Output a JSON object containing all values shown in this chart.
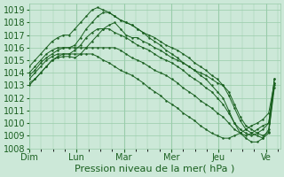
{
  "bg_color": "#cce8d8",
  "grid_color": "#99ccaa",
  "line_color": "#1a6020",
  "marker_color": "#1a6020",
  "ylim": [
    1008,
    1019.5
  ],
  "yticks": [
    1008,
    1009,
    1010,
    1011,
    1012,
    1013,
    1014,
    1015,
    1016,
    1017,
    1018,
    1019
  ],
  "xlabel": "Pression niveau de la mer( hPa )",
  "day_labels": [
    "Dim",
    "Lun",
    "Mar",
    "Mer",
    "Jeu",
    "Ve"
  ],
  "xlabel_fontsize": 8,
  "tick_fontsize": 7,
  "n_days": 5.3,
  "pts_per_day": 8,
  "series": [
    [
      1013.2,
      1013.5,
      1014.0,
      1014.5,
      1015.0,
      1015.2,
      1015.3,
      1015.3,
      1015.2,
      1015.5,
      1016.0,
      1016.5,
      1017.0,
      1017.5,
      1017.8,
      1018.0,
      1017.5,
      1017.0,
      1016.8,
      1016.8,
      1016.5,
      1016.3,
      1016.0,
      1015.8,
      1015.5,
      1015.2,
      1015.0,
      1014.8,
      1014.5,
      1014.2,
      1014.0,
      1013.8,
      1013.5,
      1013.2,
      1013.0,
      1012.5,
      1011.5,
      1010.5,
      1009.8,
      1009.5,
      1009.2,
      1009.0,
      1009.3,
      1013.2
    ],
    [
      1013.8,
      1014.2,
      1014.8,
      1015.2,
      1015.5,
      1015.8,
      1016.0,
      1016.0,
      1016.2,
      1016.8,
      1017.5,
      1018.0,
      1018.5,
      1018.8,
      1018.8,
      1018.5,
      1018.2,
      1018.0,
      1017.8,
      1017.5,
      1017.2,
      1017.0,
      1016.8,
      1016.5,
      1016.2,
      1016.0,
      1015.8,
      1015.5,
      1015.2,
      1014.8,
      1014.5,
      1014.2,
      1013.8,
      1013.5,
      1013.0,
      1012.2,
      1011.2,
      1010.2,
      1009.5,
      1009.2,
      1009.0,
      1008.8,
      1009.5,
      1013.5
    ],
    [
      1014.5,
      1015.0,
      1015.5,
      1016.0,
      1016.5,
      1016.8,
      1017.0,
      1017.0,
      1017.5,
      1018.0,
      1018.5,
      1019.0,
      1019.2,
      1019.0,
      1018.8,
      1018.5,
      1018.2,
      1018.0,
      1017.8,
      1017.5,
      1017.2,
      1016.8,
      1016.5,
      1016.2,
      1015.8,
      1015.5,
      1015.2,
      1014.8,
      1014.5,
      1014.2,
      1013.8,
      1013.5,
      1013.0,
      1012.5,
      1012.0,
      1011.0,
      1010.0,
      1009.2,
      1008.8,
      1008.5,
      1008.5,
      1008.8,
      1009.2,
      1012.8
    ],
    [
      1014.0,
      1014.5,
      1015.0,
      1015.5,
      1015.8,
      1016.0,
      1016.0,
      1016.0,
      1016.0,
      1016.0,
      1016.0,
      1016.0,
      1016.0,
      1016.0,
      1016.0,
      1016.0,
      1015.8,
      1015.5,
      1015.2,
      1015.0,
      1014.8,
      1014.5,
      1014.2,
      1014.0,
      1013.8,
      1013.5,
      1013.2,
      1012.8,
      1012.5,
      1012.2,
      1011.8,
      1011.5,
      1011.2,
      1010.8,
      1010.5,
      1010.0,
      1009.5,
      1009.2,
      1009.0,
      1009.2,
      1009.5,
      1009.8,
      1010.0,
      1013.5
    ],
    [
      1013.5,
      1014.0,
      1014.5,
      1015.0,
      1015.3,
      1015.5,
      1015.5,
      1015.5,
      1015.5,
      1015.5,
      1015.5,
      1015.5,
      1015.3,
      1015.0,
      1014.8,
      1014.5,
      1014.2,
      1014.0,
      1013.8,
      1013.5,
      1013.2,
      1012.8,
      1012.5,
      1012.2,
      1011.8,
      1011.5,
      1011.2,
      1010.8,
      1010.5,
      1010.2,
      1009.8,
      1009.5,
      1009.2,
      1009.0,
      1008.8,
      1008.8,
      1009.0,
      1009.2,
      1009.5,
      1009.8,
      1010.0,
      1010.3,
      1010.8,
      1013.2
    ],
    [
      1013.0,
      1013.5,
      1014.0,
      1014.5,
      1015.0,
      1015.3,
      1015.5,
      1015.5,
      1015.8,
      1016.2,
      1016.8,
      1017.2,
      1017.5,
      1017.5,
      1017.5,
      1017.2,
      1017.0,
      1016.8,
      1016.5,
      1016.2,
      1016.0,
      1015.8,
      1015.5,
      1015.2,
      1015.0,
      1014.8,
      1014.5,
      1014.2,
      1013.8,
      1013.5,
      1013.2,
      1012.8,
      1012.5,
      1012.0,
      1011.5,
      1010.8,
      1010.0,
      1009.5,
      1009.2,
      1009.0,
      1009.2,
      1009.5,
      1010.0,
      1013.0
    ]
  ]
}
